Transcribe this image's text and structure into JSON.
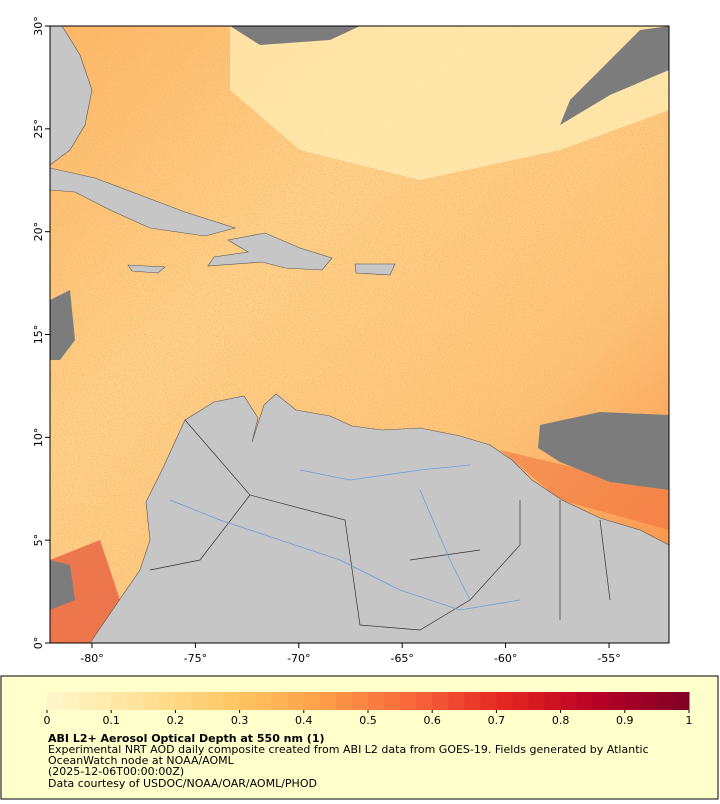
{
  "map": {
    "xlim": [
      -82.03,
      -52.1
    ],
    "ylim": [
      0,
      30
    ],
    "xticks": [
      {
        "value": -80,
        "label": "-80°"
      },
      {
        "value": -75,
        "label": "-75°"
      },
      {
        "value": -70,
        "label": "-70°"
      },
      {
        "value": -65,
        "label": "-65°"
      },
      {
        "value": -60,
        "label": "-60°"
      },
      {
        "value": -55,
        "label": "-55°"
      }
    ],
    "yticks": [
      {
        "value": 0,
        "label": "0°"
      },
      {
        "value": 5,
        "label": "5°"
      },
      {
        "value": 10,
        "label": "10°"
      },
      {
        "value": 15,
        "label": "15°"
      },
      {
        "value": 20,
        "label": "20°"
      },
      {
        "value": 25,
        "label": "25°"
      },
      {
        "value": 30,
        "label": "30°"
      }
    ]
  },
  "colorbar": {
    "lim": [
      0,
      1
    ],
    "ticks": [
      0,
      0.1,
      0.2,
      0.3,
      0.4,
      0.5,
      0.6,
      0.7,
      0.8,
      0.9,
      1
    ],
    "colors": [
      "#fff7cc",
      "#fee39a",
      "#fdc765",
      "#fd9f47",
      "#f8653a",
      "#e3251f",
      "#b70026",
      "#800026"
    ]
  },
  "legend": {
    "title": "ABI L2+ Aerosol Optical Depth at 550 nm (1)",
    "lines": [
      "Experimental NRT AOD daily composite created from ABI L2 data from GOES-19. Fields generated by Atlantic",
      "OceanWatch node at NOAA/AOML",
      "(2025-12-06T00:00:00Z)",
      "Data courtesy of USDOC/NOAA/OAR/AOML/PHOD"
    ]
  }
}
